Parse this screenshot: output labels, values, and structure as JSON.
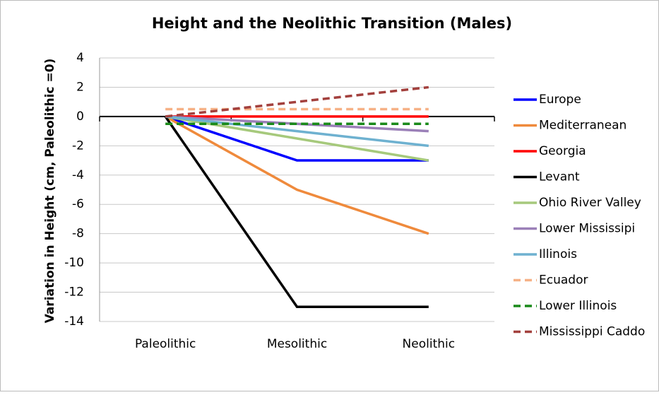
{
  "chart_data": {
    "type": "line",
    "title": "Height and the Neolithic Transition (Males)",
    "y_label": "Variation in Height (cm, Paleolithic =0)",
    "categories": [
      "Paleolithic",
      "Mesolithic",
      "Neolithic"
    ],
    "series": [
      {
        "name": "Europe",
        "color": "#0000ff",
        "dash": false,
        "values": [
          0,
          -3,
          -3
        ]
      },
      {
        "name": "Mediterranean",
        "color": "#ef8a3c",
        "dash": false,
        "values": [
          0,
          -5,
          -8
        ]
      },
      {
        "name": "Georgia",
        "color": "#ff0000",
        "dash": false,
        "values": [
          0,
          0,
          0
        ]
      },
      {
        "name": "Levant",
        "color": "#000000",
        "dash": false,
        "values": [
          0,
          -13,
          -13
        ]
      },
      {
        "name": "Ohio River Valley",
        "color": "#a6c97c",
        "dash": false,
        "values": [
          0,
          -1.5,
          -3
        ]
      },
      {
        "name": "Lower Mississipi",
        "color": "#9b80b8",
        "dash": false,
        "values": [
          0,
          -0.5,
          -1
        ]
      },
      {
        "name": "Illinois",
        "color": "#6eb1d0",
        "dash": false,
        "values": [
          0,
          -1,
          -2
        ]
      },
      {
        "name": "Ecuador",
        "color": "#f6b186",
        "dash": true,
        "values": [
          0.5,
          0.5,
          0.5
        ]
      },
      {
        "name": "Lower Illinois",
        "color": "#1a8a1a",
        "dash": true,
        "values": [
          -0.5,
          -0.5,
          -0.5
        ]
      },
      {
        "name": "Mississippi Caddo",
        "color": "#a3403d",
        "dash": true,
        "values": [
          0,
          1,
          2
        ]
      }
    ],
    "ylim": [
      -14,
      4
    ],
    "yticks": [
      -14,
      -12,
      -10,
      -8,
      -6,
      -4,
      -2,
      0,
      2,
      4
    ],
    "grid": true,
    "legend": "right"
  }
}
